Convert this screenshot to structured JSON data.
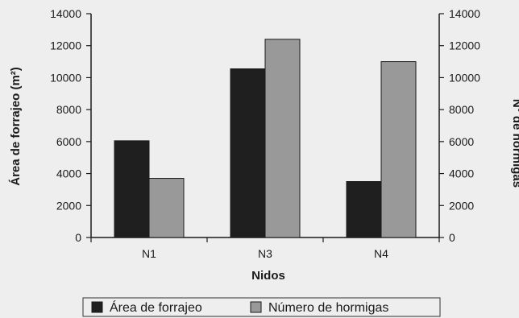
{
  "chart_data": {
    "type": "bar",
    "categories": [
      "N1",
      "N3",
      "N4"
    ],
    "series": [
      {
        "name": "Área de forrajeo",
        "axis": "left",
        "color": "#1f1f1f",
        "values": [
          6050,
          10550,
          3500
        ]
      },
      {
        "name": "Número de hormigas",
        "axis": "right",
        "color": "#999999",
        "values": [
          3700,
          12400,
          11000
        ]
      }
    ],
    "xlabel": "Nidos",
    "ylabel_left": "Área de forrajeo (m²)",
    "ylabel_right": "N° de hormigas",
    "ylim_left": [
      0,
      14000
    ],
    "ylim_right": [
      0,
      14000
    ],
    "yticks": [
      0,
      2000,
      4000,
      6000,
      8000,
      10000,
      12000,
      14000
    ],
    "grid": false,
    "legend_position": "bottom"
  }
}
